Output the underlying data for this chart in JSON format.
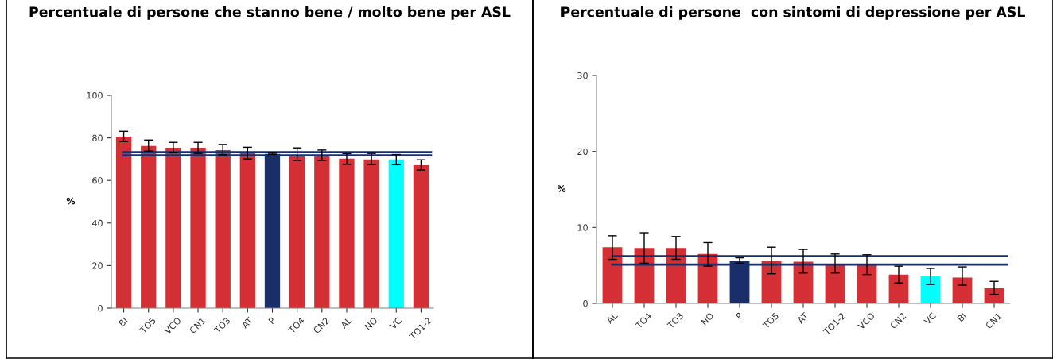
{
  "chart_data": [
    {
      "type": "bar",
      "title": "Percentuale di persone che stanno bene / molto bene per ASL",
      "ylabel": "%",
      "categories": [
        "BI",
        "TO5",
        "VCO",
        "CN1",
        "TO3",
        "AT",
        "P",
        "TO4",
        "CN2",
        "AL",
        "NO",
        "VC",
        "TO1-2"
      ],
      "values": [
        80.6,
        76.2,
        75.4,
        75.4,
        74.3,
        73.3,
        72.5,
        71.6,
        71.6,
        70.2,
        69.9,
        69.9,
        67.2
      ],
      "colors": [
        "#d32f35",
        "#d32f35",
        "#d32f35",
        "#d32f35",
        "#d32f35",
        "#d32f35",
        "#1a2f6a",
        "#d32f35",
        "#d32f35",
        "#d32f35",
        "#d32f35",
        "#00ffff",
        "#d32f35"
      ],
      "errors": [
        [
          78.3,
          83.1
        ],
        [
          73.8,
          79.0
        ],
        [
          73.0,
          77.9
        ],
        [
          72.7,
          77.9
        ],
        [
          72.1,
          76.9
        ],
        [
          70.1,
          75.6
        ],
        [
          72.2,
          72.8
        ],
        [
          69.4,
          75.3
        ],
        [
          69.4,
          74.3
        ],
        [
          67.6,
          72.6
        ],
        [
          67.5,
          72.7
        ],
        [
          67.4,
          72.2
        ],
        [
          64.9,
          69.7
        ]
      ],
      "ylim": [
        0,
        100
      ],
      "yticks": [
        0,
        20,
        40,
        60,
        80,
        100
      ],
      "grid": false,
      "ref_lines": [
        {
          "axis": "y",
          "value": 73.3,
          "label": null,
          "color": "#1a2f6a"
        },
        {
          "axis": "y",
          "value": 71.8,
          "label": null,
          "color": "#1a2f6a"
        }
      ]
    },
    {
      "type": "bar",
      "title": "Percentuale di persone  con sintomi di depressione per ASL",
      "ylabel": "%",
      "categories": [
        "AL",
        "TO4",
        "TO3",
        "NO",
        "P",
        "TO5",
        "AT",
        "TO1-2",
        "VCO",
        "CN2",
        "VC",
        "BI",
        "CN1"
      ],
      "values": [
        7.4,
        7.3,
        7.3,
        6.5,
        5.6,
        5.6,
        5.5,
        5.1,
        5.1,
        3.8,
        3.6,
        3.4,
        2.0
      ],
      "colors": [
        "#d32f35",
        "#d32f35",
        "#d32f35",
        "#d32f35",
        "#1a2f6a",
        "#d32f35",
        "#d32f35",
        "#d32f35",
        "#d32f35",
        "#d32f35",
        "#00ffff",
        "#d32f35",
        "#d32f35"
      ],
      "errors": [
        [
          5.8,
          8.9
        ],
        [
          5.3,
          9.3
        ],
        [
          5.8,
          8.8
        ],
        [
          4.9,
          8.0
        ],
        [
          5.3,
          6.0
        ],
        [
          3.9,
          7.4
        ],
        [
          4.0,
          7.1
        ],
        [
          4.0,
          6.5
        ],
        [
          3.8,
          6.4
        ],
        [
          2.7,
          4.9
        ],
        [
          2.5,
          4.6
        ],
        [
          2.4,
          4.8
        ],
        [
          1.2,
          2.9
        ]
      ],
      "ylim": [
        0,
        30
      ],
      "yticks": [
        0,
        10,
        20,
        30
      ],
      "grid": false,
      "ref_lines": [
        {
          "axis": "y",
          "value": 6.2,
          "label": null,
          "color": "#1a2f6a"
        },
        {
          "axis": "y",
          "value": 5.1,
          "label": null,
          "color": "#1a2f6a"
        }
      ]
    }
  ]
}
